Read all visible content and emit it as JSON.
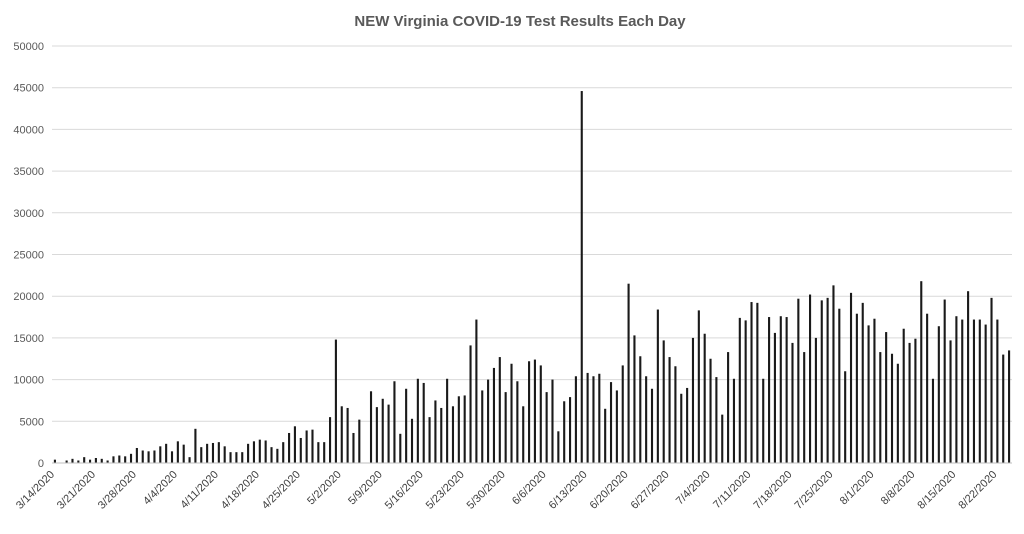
{
  "chart_data": {
    "type": "bar",
    "title": "NEW Virginia COVID-19 Test Results Each Day",
    "xlabel": "",
    "ylabel": "",
    "ylim": [
      0,
      50000
    ],
    "yticks": [
      0,
      5000,
      10000,
      15000,
      20000,
      25000,
      30000,
      35000,
      40000,
      45000,
      50000
    ],
    "grid": true,
    "legend": "none",
    "bar_color": "#1a1a1a",
    "x_start": "3/14/2020",
    "x_end": "8/24/2020",
    "x_tick_labels": [
      "3/14/2020",
      "3/21/2020",
      "3/28/2020",
      "4/4/2020",
      "4/11/2020",
      "4/18/2020",
      "4/25/2020",
      "5/2/2020",
      "5/9/2020",
      "5/16/2020",
      "5/23/2020",
      "5/30/2020",
      "6/6/2020",
      "6/13/2020",
      "6/20/2020",
      "6/27/2020",
      "7/4/2020",
      "7/11/2020",
      "7/18/2020",
      "7/25/2020",
      "8/1/2020",
      "8/8/2020",
      "8/15/2020",
      "8/22/2020"
    ],
    "values": [
      400,
      0,
      300,
      500,
      300,
      700,
      400,
      600,
      500,
      300,
      800,
      900,
      800,
      1100,
      1800,
      1500,
      1400,
      1500,
      2000,
      2300,
      1400,
      2600,
      2200,
      700,
      4100,
      1900,
      2300,
      2400,
      2500,
      2000,
      1300,
      1300,
      1300,
      2300,
      2600,
      2800,
      2700,
      1900,
      1700,
      2500,
      3600,
      4400,
      3000,
      3900,
      4000,
      2500,
      2500,
      5500,
      14800,
      6800,
      6600,
      3600,
      5200,
      0,
      8600,
      6700,
      7700,
      7000,
      9800,
      3500,
      8900,
      5300,
      10100,
      9600,
      5500,
      7500,
      6600,
      10100,
      6800,
      8000,
      8100,
      14100,
      17200,
      8700,
      10000,
      11400,
      12700,
      8500,
      11900,
      9800,
      6800,
      12200,
      12400,
      11700,
      8500,
      10000,
      3800,
      7400,
      7900,
      10400,
      44600,
      10800,
      10400,
      10700,
      6500,
      9700,
      8700,
      11700,
      21500,
      15300,
      12800,
      10400,
      8900,
      18400,
      14700,
      12700,
      11600,
      8300,
      9000,
      15000,
      18300,
      15500,
      12500,
      10300,
      5800,
      13300,
      10100,
      17400,
      17100,
      19300,
      19200,
      10100,
      17500,
      15600,
      17600,
      17500,
      14400,
      19700,
      13300,
      20200,
      15000,
      19500,
      19800,
      21300,
      18500,
      11000,
      20400,
      17900,
      19200,
      16500,
      17300,
      13300,
      15700,
      13100,
      11900,
      16100,
      14400,
      14900,
      21800,
      17900,
      10100,
      16400,
      19600,
      14700,
      17600,
      17200,
      20600,
      17200,
      17200,
      16600,
      19800,
      17200,
      13000,
      13500
    ]
  }
}
